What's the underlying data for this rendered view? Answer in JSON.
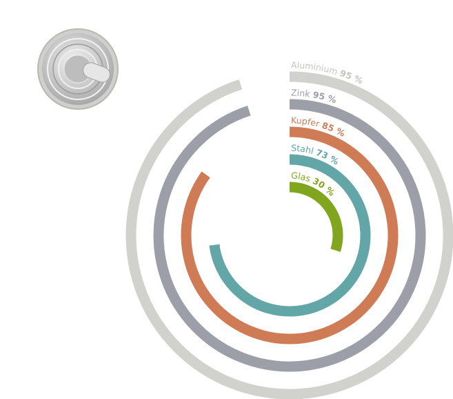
{
  "chart_data": {
    "type": "radial-bar",
    "unit": "%",
    "range": [
      0,
      100
    ],
    "series": [
      {
        "name": "Aluminium",
        "value": 95,
        "label": "Aluminium",
        "value_label": "95 %",
        "color": "#d1d1cd"
      },
      {
        "name": "Zink",
        "value": 95,
        "label": "Zink",
        "value_label": "95 %",
        "color": "#9c9ea8"
      },
      {
        "name": "Kupfer",
        "value": 85,
        "label": "Kupfer",
        "value_label": "85 %",
        "color": "#cf7b55"
      },
      {
        "name": "Stahl",
        "value": 73,
        "label": "Stahl",
        "value_label": "73 %",
        "color": "#62a6a7"
      },
      {
        "name": "Glas",
        "value": 30,
        "label": "Glas",
        "value_label": "30 %",
        "color": "#80a51e"
      }
    ]
  },
  "image": {
    "icon": "tin-can-lid-icon"
  }
}
